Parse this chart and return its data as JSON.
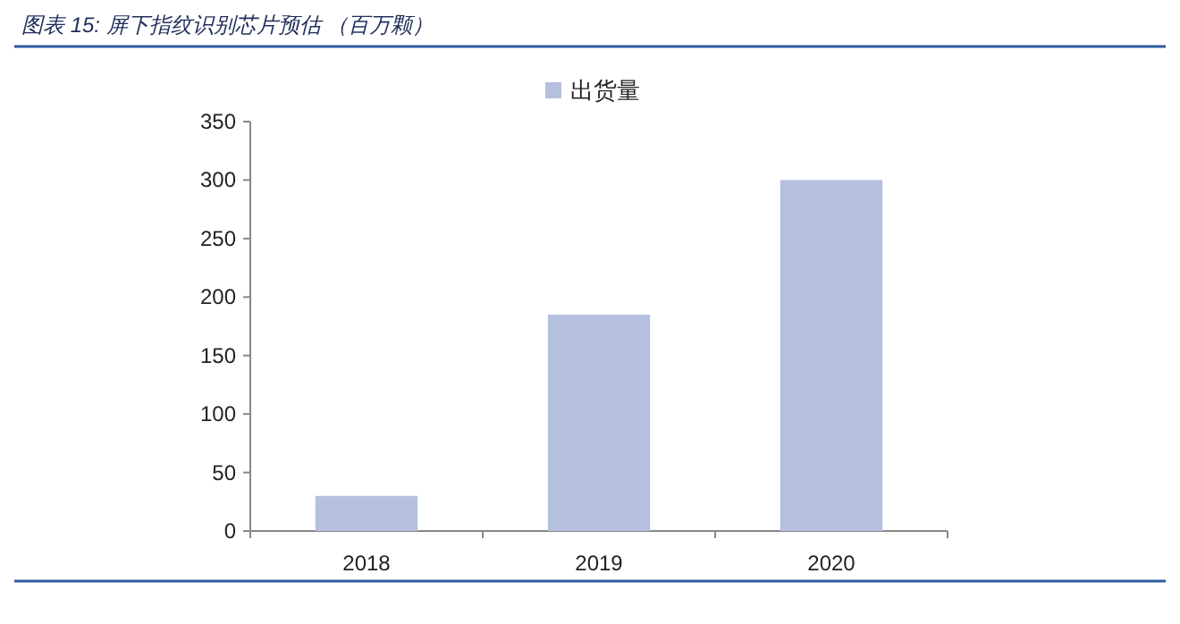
{
  "chart_data": {
    "type": "bar",
    "title": "图表 15: 屏下指纹识别芯片预估 （百万颗）",
    "categories": [
      "2018",
      "2019",
      "2020"
    ],
    "series": [
      {
        "name": "出货量",
        "color": "#b4c0de",
        "values": [
          30,
          185,
          300
        ]
      }
    ],
    "ylim": [
      0,
      350
    ],
    "yticks": [
      0,
      50,
      100,
      150,
      200,
      250,
      300,
      350
    ],
    "legend": "top"
  }
}
